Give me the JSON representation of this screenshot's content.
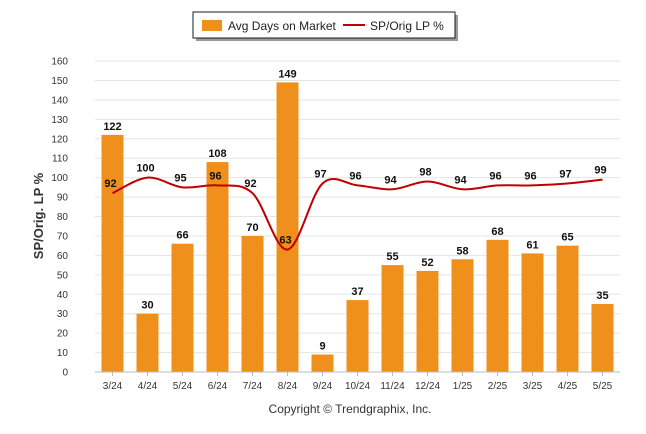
{
  "legend": {
    "bar_label": "Avg Days on Market",
    "line_label": "SP/Orig LP %"
  },
  "copyright": "Copyright © Trendgraphix, Inc.",
  "chart_data": {
    "type": "bar",
    "categories": [
      "3/24",
      "4/24",
      "5/24",
      "6/24",
      "7/24",
      "8/24",
      "9/24",
      "10/24",
      "11/24",
      "12/24",
      "1/25",
      "2/25",
      "3/25",
      "4/25",
      "5/25"
    ],
    "series": [
      {
        "name": "Avg Days on Market",
        "type": "bar",
        "color": "#f0901c",
        "values": [
          122,
          30,
          66,
          108,
          70,
          149,
          9,
          37,
          55,
          52,
          58,
          68,
          61,
          65,
          35
        ]
      },
      {
        "name": "SP/Orig LP %",
        "type": "line",
        "color": "#c00000",
        "values": [
          92,
          100,
          95,
          96,
          92,
          63,
          97,
          96,
          94,
          98,
          94,
          96,
          96,
          97,
          99
        ]
      }
    ],
    "ylabel": "SP/Orig. LP %",
    "ylim": [
      0,
      160
    ],
    "yticks": [
      0,
      10,
      20,
      30,
      40,
      50,
      60,
      70,
      80,
      90,
      100,
      110,
      120,
      130,
      140,
      150,
      160
    ],
    "grid": true,
    "legend_position": "top-center"
  }
}
